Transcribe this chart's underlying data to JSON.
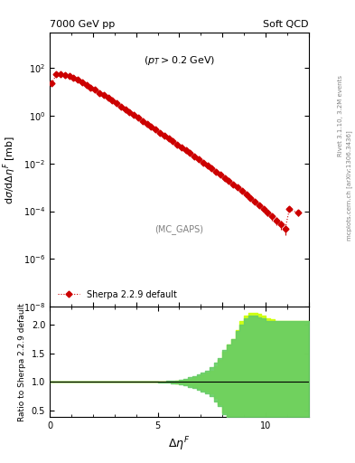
{
  "title_left": "7000 GeV pp",
  "title_right": "Soft QCD",
  "annotation": "(p_{T} > 0.2 GeV)",
  "mc_label": "(MC_GAPS)",
  "ylabel_main": "dσ/dΔη$^F$ [mb]",
  "ylabel_ratio": "Ratio to Sherpa 2.2.9 default",
  "xlabel": "Δη$^F$",
  "legend_label": "Sherpa 2.2.9 default",
  "right_label1": "Rivet 3.1.10, 3.2M events",
  "right_label2": "mcplots.cern.ch [arXiv:1306.3436]",
  "xlim": [
    0,
    12.0
  ],
  "ylim_main": [
    1e-08,
    3000.0
  ],
  "ylim_ratio": [
    0.4,
    2.3
  ],
  "ratio_yticks": [
    0.5,
    1.0,
    1.5,
    2.0
  ],
  "line_color": "#cc0000",
  "band1_color": "#ccff00",
  "band2_color": "#66cc66",
  "background_color": "#ffffff",
  "x_data": [
    0.1,
    0.3,
    0.5,
    0.7,
    0.9,
    1.1,
    1.3,
    1.5,
    1.7,
    1.9,
    2.1,
    2.3,
    2.5,
    2.7,
    2.9,
    3.1,
    3.3,
    3.5,
    3.7,
    3.9,
    4.1,
    4.3,
    4.5,
    4.7,
    4.9,
    5.1,
    5.3,
    5.5,
    5.7,
    5.9,
    6.1,
    6.3,
    6.5,
    6.7,
    6.9,
    7.1,
    7.3,
    7.5,
    7.7,
    7.9,
    8.1,
    8.3,
    8.5,
    8.7,
    8.9,
    9.1,
    9.3,
    9.5,
    9.7,
    9.9,
    10.1,
    10.3,
    10.5,
    10.7,
    10.9,
    11.1,
    11.5
  ],
  "y_data": [
    22,
    52,
    55,
    50,
    44,
    37,
    31,
    24,
    19,
    15,
    12,
    9.0,
    7.0,
    5.5,
    4.2,
    3.2,
    2.4,
    1.85,
    1.4,
    1.05,
    0.8,
    0.6,
    0.45,
    0.34,
    0.26,
    0.19,
    0.145,
    0.11,
    0.083,
    0.062,
    0.047,
    0.036,
    0.027,
    0.02,
    0.015,
    0.011,
    0.0082,
    0.0062,
    0.0046,
    0.0034,
    0.0024,
    0.0018,
    0.00135,
    0.00098,
    0.00072,
    0.00052,
    0.00036,
    0.00026,
    0.00018,
    0.000125,
    8.5e-05,
    6e-05,
    4.2e-05,
    2.8e-05,
    1.8e-05,
    0.00012,
    8.5e-05
  ],
  "yerr_rel": [
    0.03,
    0.02,
    0.02,
    0.02,
    0.02,
    0.02,
    0.02,
    0.02,
    0.02,
    0.02,
    0.02,
    0.02,
    0.02,
    0.02,
    0.02,
    0.02,
    0.02,
    0.02,
    0.02,
    0.02,
    0.02,
    0.02,
    0.02,
    0.02,
    0.02,
    0.02,
    0.02,
    0.02,
    0.02,
    0.02,
    0.02,
    0.02,
    0.02,
    0.02,
    0.03,
    0.03,
    0.04,
    0.04,
    0.05,
    0.06,
    0.07,
    0.08,
    0.09,
    0.1,
    0.12,
    0.14,
    0.16,
    0.18,
    0.2,
    0.22,
    0.25,
    0.3,
    0.35,
    0.4,
    0.45,
    0.2,
    0.25
  ],
  "ratio_x": [
    0.0,
    0.2,
    0.4,
    0.6,
    0.8,
    1.0,
    1.2,
    1.4,
    1.6,
    1.8,
    2.0,
    2.2,
    2.4,
    2.6,
    2.8,
    3.0,
    3.2,
    3.4,
    3.6,
    3.8,
    4.0,
    4.2,
    4.4,
    4.6,
    4.8,
    5.0,
    5.2,
    5.4,
    5.6,
    5.8,
    6.0,
    6.2,
    6.4,
    6.6,
    6.8,
    7.0,
    7.2,
    7.4,
    7.6,
    7.8,
    8.0,
    8.2,
    8.4,
    8.6,
    8.8,
    9.0,
    9.2,
    9.4,
    9.6,
    9.8,
    10.0,
    10.2,
    10.4,
    10.6,
    10.8,
    11.0,
    11.2,
    11.4,
    11.6,
    11.8,
    12.0
  ],
  "band1_upper": [
    1.0,
    1.0,
    1.0,
    1.0,
    1.0,
    1.0,
    1.0,
    1.0,
    1.0,
    1.0,
    1.0,
    1.0,
    1.0,
    1.0,
    1.0,
    1.0,
    1.0,
    1.0,
    1.0,
    1.0,
    1.0,
    1.0,
    1.0,
    1.0,
    1.0,
    1.0,
    1.0,
    1.0,
    1.01,
    1.02,
    1.03,
    1.04,
    1.06,
    1.08,
    1.1,
    1.13,
    1.16,
    1.2,
    1.28,
    1.38,
    1.52,
    1.65,
    1.75,
    1.9,
    2.05,
    2.15,
    2.2,
    2.2,
    2.18,
    2.15,
    2.1,
    2.08,
    2.05,
    2.05,
    2.05,
    2.05,
    2.05,
    2.05,
    2.05,
    2.05,
    2.05
  ],
  "band1_lower": [
    1.0,
    1.0,
    1.0,
    1.0,
    1.0,
    1.0,
    1.0,
    1.0,
    1.0,
    1.0,
    1.0,
    1.0,
    1.0,
    1.0,
    1.0,
    1.0,
    1.0,
    1.0,
    1.0,
    1.0,
    1.0,
    1.0,
    1.0,
    1.0,
    1.0,
    1.0,
    1.0,
    1.0,
    0.99,
    0.98,
    0.97,
    0.96,
    0.94,
    0.92,
    0.9,
    0.87,
    0.84,
    0.8,
    0.72,
    0.62,
    0.48,
    0.35,
    0.25,
    0.1,
    0.1,
    0.1,
    0.1,
    0.1,
    0.1,
    0.1,
    0.1,
    0.1,
    0.1,
    0.1,
    0.1,
    0.1,
    0.1,
    0.1,
    0.1,
    0.1,
    0.1
  ],
  "band2_upper": [
    1.0,
    1.0,
    1.0,
    1.0,
    1.0,
    1.0,
    1.0,
    1.0,
    1.0,
    1.0,
    1.0,
    1.0,
    1.0,
    1.0,
    1.0,
    1.0,
    1.0,
    1.0,
    1.0,
    1.0,
    1.0,
    1.0,
    1.0,
    1.0,
    1.0,
    1.005,
    1.01,
    1.015,
    1.02,
    1.03,
    1.04,
    1.06,
    1.08,
    1.1,
    1.13,
    1.16,
    1.2,
    1.25,
    1.33,
    1.42,
    1.55,
    1.65,
    1.75,
    1.88,
    2.0,
    2.1,
    2.15,
    2.15,
    2.12,
    2.1,
    2.05,
    2.05,
    2.05,
    2.05,
    2.05,
    2.05,
    2.05,
    2.05,
    2.05,
    2.05,
    2.05
  ],
  "band2_lower": [
    1.0,
    1.0,
    1.0,
    1.0,
    1.0,
    1.0,
    1.0,
    1.0,
    1.0,
    1.0,
    1.0,
    1.0,
    1.0,
    1.0,
    1.0,
    1.0,
    1.0,
    1.0,
    1.0,
    1.0,
    1.0,
    1.0,
    1.0,
    1.0,
    1.0,
    0.995,
    0.99,
    0.985,
    0.98,
    0.97,
    0.96,
    0.94,
    0.92,
    0.9,
    0.87,
    0.84,
    0.8,
    0.75,
    0.67,
    0.58,
    0.45,
    0.35,
    0.25,
    0.12,
    0.12,
    0.12,
    0.12,
    0.12,
    0.12,
    0.12,
    0.12,
    0.12,
    0.12,
    0.12,
    0.12,
    0.12,
    0.12,
    0.12,
    0.12,
    0.12,
    0.12
  ]
}
